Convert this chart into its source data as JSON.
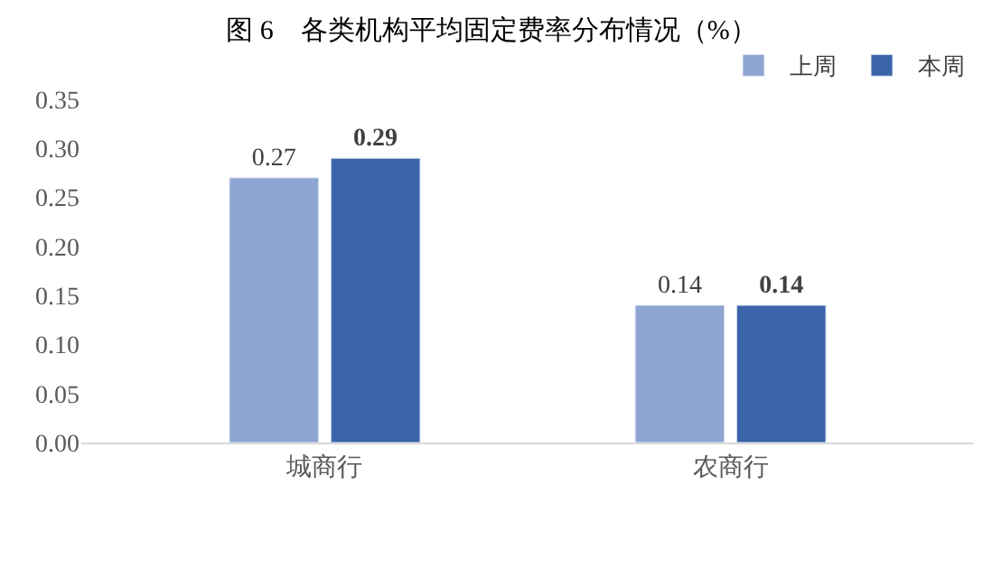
{
  "chart_data": {
    "type": "bar",
    "title": "图 6　各类机构平均固定费率分布情况（%）",
    "categories": [
      "城商行",
      "农商行"
    ],
    "series": [
      {
        "name": "上周",
        "color": "#8ea5d2",
        "values": [
          0.27,
          0.14
        ]
      },
      {
        "name": "本周",
        "color": "#3a64a9",
        "values": [
          0.29,
          0.14
        ]
      }
    ],
    "ylim": [
      0,
      0.35
    ],
    "yticks": [
      {
        "value": 0,
        "label": "0.00"
      },
      0.05,
      {
        "value": 0.1,
        "label": "0.10"
      },
      0.15,
      {
        "value": 0.2,
        "label": "0.20"
      },
      0.25,
      {
        "value": 0.3,
        "label": "0.30"
      },
      0.35
    ],
    "data_labels": true,
    "legend": "top right"
  }
}
